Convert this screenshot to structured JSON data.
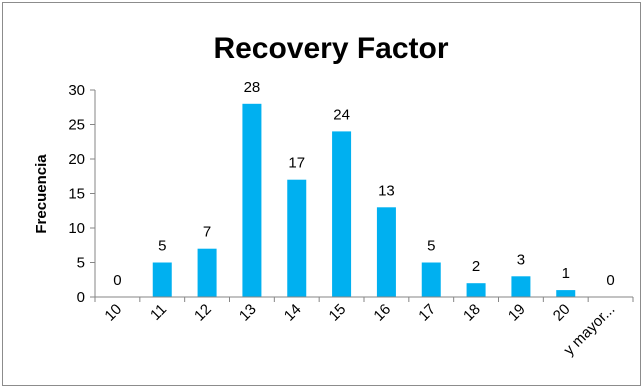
{
  "chart_data": {
    "type": "bar",
    "title": "Recovery Factor",
    "xlabel": "",
    "ylabel": "Frecuencia",
    "categories": [
      "10",
      "11",
      "12",
      "13",
      "14",
      "15",
      "16",
      "17",
      "18",
      "19",
      "20",
      "y mayor..."
    ],
    "values": [
      0,
      5,
      7,
      28,
      17,
      24,
      13,
      5,
      2,
      3,
      1,
      0
    ],
    "ylim": [
      0,
      30
    ],
    "yticks": [
      0,
      5,
      10,
      15,
      20,
      25,
      30
    ],
    "grid": false,
    "legend": "none",
    "bar_color": "#00b0f0",
    "axis_color": "#868686"
  }
}
